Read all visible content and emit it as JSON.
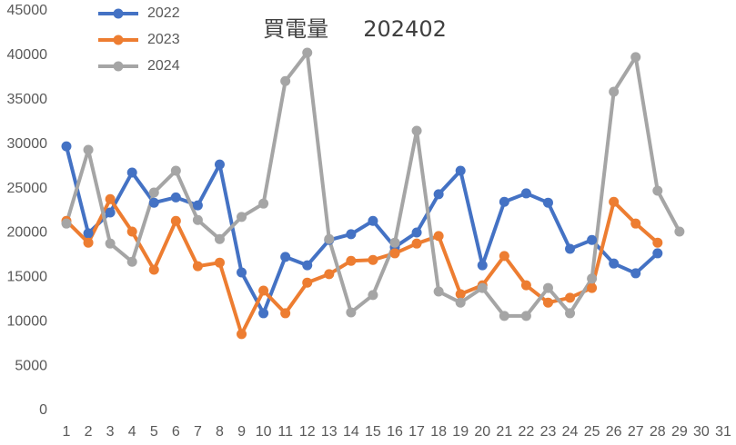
{
  "chart_data": {
    "type": "line",
    "title": "買電量     202402",
    "categories": [
      1,
      2,
      3,
      4,
      5,
      6,
      7,
      8,
      9,
      10,
      11,
      12,
      13,
      14,
      15,
      16,
      17,
      18,
      19,
      20,
      21,
      22,
      23,
      24,
      25,
      26,
      27,
      28,
      29,
      30,
      31
    ],
    "series": [
      {
        "name": "2022",
        "color": "#4472c4",
        "values": [
          29750,
          19950,
          22300,
          26800,
          23400,
          24000,
          23100,
          27700,
          15550,
          10950,
          17300,
          16350,
          19200,
          19850,
          21350,
          18400,
          20050,
          24350,
          27000,
          16350,
          23500,
          24450,
          23400,
          18200,
          19200,
          16550,
          15450,
          17700,
          null,
          null,
          null
        ]
      },
      {
        "name": "2023",
        "color": "#ed7d31",
        "values": [
          21350,
          18900,
          23800,
          20150,
          15850,
          21350,
          16250,
          16650,
          8600,
          13500,
          10950,
          14400,
          15350,
          16850,
          16950,
          17700,
          18800,
          19650,
          13100,
          14100,
          17400,
          14100,
          12150,
          12700,
          13800,
          23500,
          21050,
          18900,
          null,
          null,
          null
        ]
      },
      {
        "name": "2024",
        "color": "#a5a5a5",
        "values": [
          21050,
          29350,
          18800,
          16750,
          24550,
          27000,
          21450,
          19300,
          21800,
          23300,
          37100,
          40300,
          19300,
          11050,
          13000,
          18900,
          31500,
          13400,
          12150,
          13800,
          10650,
          10650,
          13800,
          10950,
          14850,
          35900,
          39800,
          24750,
          20150,
          null,
          null
        ]
      }
    ],
    "ylim": [
      0,
      45000
    ],
    "yticks": [
      0,
      5000,
      10000,
      15000,
      20000,
      25000,
      30000,
      35000,
      40000,
      45000
    ],
    "grid": false,
    "legend": "top-left"
  }
}
